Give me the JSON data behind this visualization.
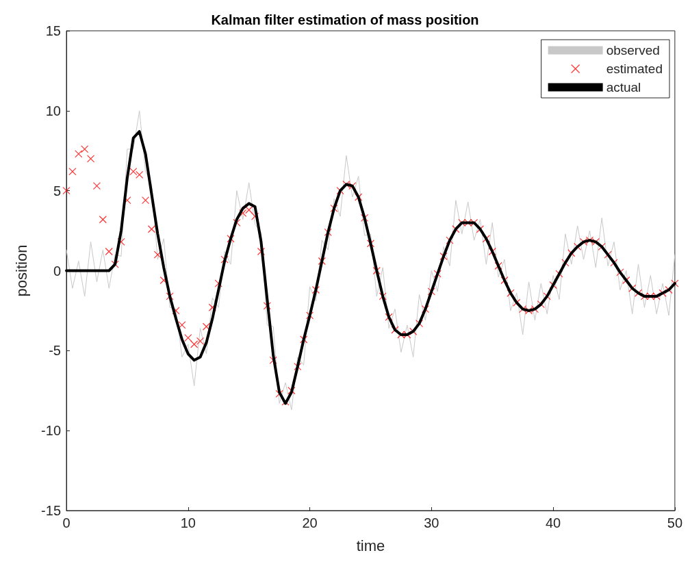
{
  "chart_data": {
    "type": "line",
    "title": "Kalman filter estimation of mass position",
    "xlabel": "time",
    "ylabel": "position",
    "x": [
      0,
      0.5,
      1,
      1.5,
      2,
      2.5,
      3,
      3.5,
      4,
      4.5,
      5,
      5.5,
      6,
      6.5,
      7,
      7.5,
      8,
      8.5,
      9,
      9.5,
      10,
      10.5,
      11,
      11.5,
      12,
      12.5,
      13,
      13.5,
      14,
      14.5,
      15,
      15.5,
      16,
      16.5,
      17,
      17.5,
      18,
      18.5,
      19,
      19.5,
      20,
      20.5,
      21,
      21.5,
      22,
      22.5,
      23,
      23.5,
      24,
      24.5,
      25,
      25.5,
      26,
      26.5,
      27,
      27.5,
      28,
      28.5,
      29,
      29.5,
      30,
      30.5,
      31,
      31.5,
      32,
      32.5,
      33,
      33.5,
      34,
      34.5,
      35,
      35.5,
      36,
      36.5,
      37,
      37.5,
      38,
      38.5,
      39,
      39.5,
      40,
      40.5,
      41,
      41.5,
      42,
      42.5,
      43,
      43.5,
      44,
      44.5,
      45,
      45.5,
      46,
      46.5,
      47,
      47.5,
      48,
      48.5,
      49,
      49.5,
      50
    ],
    "xlim": [
      0,
      50
    ],
    "xticks": [
      0,
      10,
      20,
      30,
      40,
      50
    ],
    "ylim": [
      -15,
      15
    ],
    "yticks": [
      -15,
      -10,
      -5,
      0,
      5,
      10,
      15
    ],
    "grid": false,
    "legend": "top right",
    "series": [
      {
        "name": "observed",
        "type": "line",
        "color": "#c8c8c8",
        "marker": "none",
        "line_style": "solid",
        "values": [
          1.3,
          -1.1,
          0.6,
          -1.6,
          1.8,
          -0.7,
          1.3,
          -1.1,
          1.0,
          0.9,
          7.6,
          7.6,
          10.0,
          6.2,
          5.4,
          0.7,
          2.0,
          -2.3,
          -2.4,
          -5.4,
          -4.6,
          -7.2,
          -3.6,
          -5.2,
          -1.7,
          -2.3,
          1.2,
          0.4,
          5.0,
          3.2,
          5.5,
          2.9,
          2.4,
          -3.4,
          -3.5,
          -8.3,
          -7.0,
          -8.7,
          -5.4,
          -5.9,
          -1.0,
          -1.9,
          1.9,
          1.3,
          4.5,
          3.4,
          7.2,
          4.6,
          5.9,
          2.2,
          2.3,
          -1.6,
          0.2,
          -3.6,
          -2.4,
          -5.1,
          -3.4,
          -5.4,
          -1.5,
          -3.1,
          0.0,
          -1.3,
          1.5,
          0.3,
          4.4,
          2.3,
          4.3,
          1.9,
          3.2,
          0.4,
          3.0,
          -0.4,
          0.7,
          -2.5,
          -1.4,
          -4.0,
          -0.7,
          -3.1,
          -0.8,
          -2.7,
          -0.3,
          -1.8,
          2.3,
          0.4,
          2.8,
          0.7,
          2.5,
          0.2,
          3.3,
          0.3,
          1.8,
          -1.2,
          0.0,
          -2.7,
          0.4,
          -2.3,
          -0.3,
          -2.7,
          -0.8,
          -2.8,
          1.0
        ]
      },
      {
        "name": "estimated",
        "type": "scatter",
        "color": "#ff0000",
        "marker": "cross",
        "values": [
          5.0,
          6.2,
          7.3,
          7.6,
          7.0,
          5.3,
          3.2,
          1.2,
          0.4,
          1.8,
          4.4,
          6.2,
          6.0,
          4.4,
          2.6,
          1.0,
          -0.6,
          -1.6,
          -2.5,
          -3.4,
          -4.2,
          -4.6,
          -4.4,
          -3.5,
          -2.3,
          -0.8,
          0.7,
          2.0,
          3.0,
          3.6,
          3.8,
          3.4,
          1.2,
          -2.2,
          -5.6,
          -7.7,
          -8.2,
          -7.5,
          -6.0,
          -4.3,
          -2.8,
          -1.2,
          0.6,
          2.4,
          3.9,
          5.0,
          5.4,
          5.3,
          4.6,
          3.3,
          1.7,
          0.0,
          -1.6,
          -2.9,
          -3.7,
          -4.0,
          -4.0,
          -3.8,
          -3.3,
          -2.4,
          -1.3,
          -0.2,
          0.9,
          1.9,
          2.6,
          3.0,
          3.0,
          3.0,
          2.6,
          2.0,
          1.2,
          0.3,
          -0.6,
          -1.4,
          -2.0,
          -2.4,
          -2.5,
          -2.4,
          -2.1,
          -1.6,
          -0.9,
          -0.2,
          0.5,
          1.1,
          1.5,
          1.8,
          1.9,
          1.8,
          1.5,
          1.0,
          0.5,
          -0.1,
          -0.6,
          -1.1,
          -1.4,
          -1.6,
          -1.6,
          -1.6,
          -1.4,
          -1.2,
          -0.8
        ]
      },
      {
        "name": "actual",
        "type": "line",
        "color": "#000000",
        "marker": "none",
        "line_style": "solid",
        "values": [
          0,
          0,
          0,
          0,
          0,
          0,
          0,
          0,
          0.4,
          2.5,
          5.8,
          8.3,
          8.7,
          7.3,
          4.8,
          2.3,
          0.2,
          -1.6,
          -3.0,
          -4.3,
          -5.2,
          -5.6,
          -5.4,
          -4.5,
          -3.0,
          -1.2,
          0.6,
          2.0,
          3.2,
          3.9,
          4.2,
          4.0,
          1.8,
          -1.8,
          -5.3,
          -7.6,
          -8.3,
          -7.6,
          -6.0,
          -4.3,
          -2.8,
          -1.2,
          0.6,
          2.4,
          3.9,
          5.0,
          5.4,
          5.3,
          4.6,
          3.3,
          1.7,
          0.0,
          -1.6,
          -2.9,
          -3.7,
          -4.0,
          -4.0,
          -3.8,
          -3.3,
          -2.4,
          -1.3,
          -0.2,
          0.9,
          1.9,
          2.6,
          3.0,
          3.0,
          3.0,
          2.6,
          2.0,
          1.2,
          0.3,
          -0.6,
          -1.4,
          -2.0,
          -2.4,
          -2.5,
          -2.4,
          -2.1,
          -1.6,
          -0.9,
          -0.2,
          0.5,
          1.1,
          1.5,
          1.8,
          1.9,
          1.8,
          1.5,
          1.0,
          0.5,
          -0.1,
          -0.6,
          -1.1,
          -1.4,
          -1.6,
          -1.6,
          -1.6,
          -1.4,
          -1.2,
          -0.8
        ]
      }
    ]
  }
}
